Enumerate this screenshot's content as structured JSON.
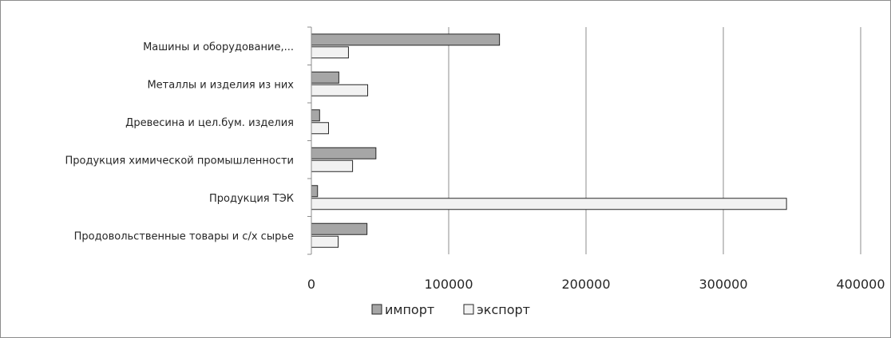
{
  "chart_data": {
    "type": "bar",
    "orientation": "horizontal",
    "categories": [
      "Машины и оборудование,...",
      "Металлы и изделия из них",
      "Древесина и цел.бум. изделия",
      "Продукция химической промышленности",
      "Продукция ТЭК",
      "Продовольственные товары и с/х сырье"
    ],
    "series": [
      {
        "name": "импорт",
        "color": "#a6a6a6",
        "values": [
          137000,
          20000,
          6000,
          47000,
          4500,
          40500
        ]
      },
      {
        "name": "экспорт",
        "color": "#f2f2f2",
        "values": [
          27000,
          41000,
          12500,
          30000,
          346000,
          19500
        ]
      }
    ],
    "xlim": [
      0,
      400000
    ],
    "xticks": [
      "0",
      "100000",
      "200000",
      "300000",
      "400000"
    ],
    "grid": "vertical",
    "legend": "bottom",
    "title": "",
    "xlabel": "",
    "ylabel": ""
  }
}
